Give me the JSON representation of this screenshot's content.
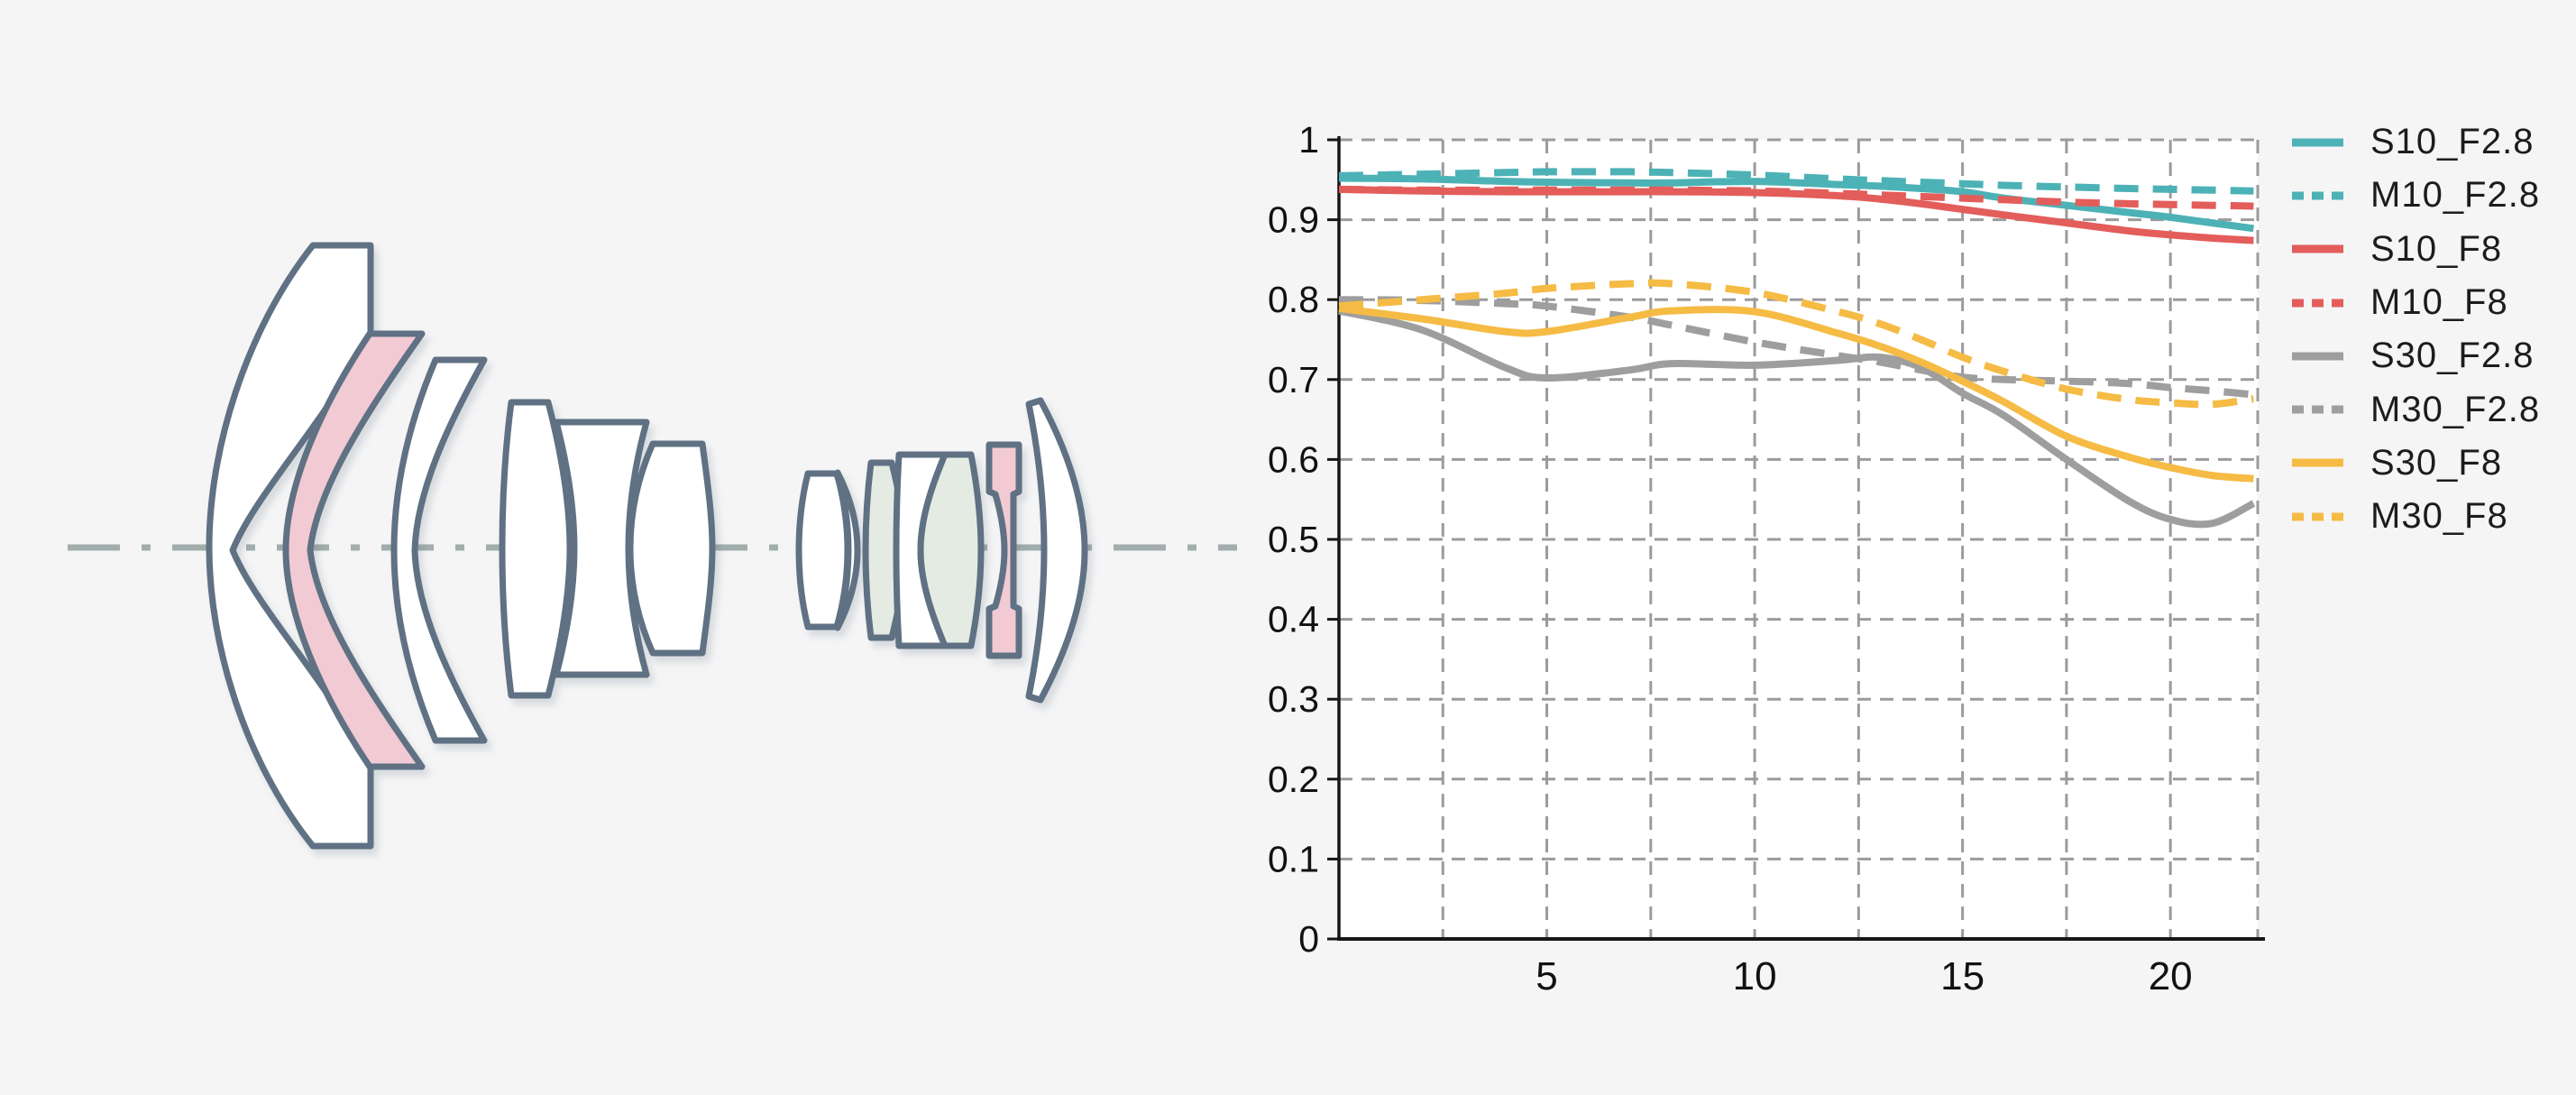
{
  "window": {
    "background": "#f5f5f6"
  },
  "lens_diagram": {
    "description": "optical lens cross-section with 12 glass elements on a dash-dot optical axis",
    "colors": {
      "outline": "#5f7183",
      "glass_white": "#ffffff",
      "glass_pink": "#f1cad4",
      "glass_green": "#e4ebe3",
      "optical_axis": "#a1aeac"
    },
    "optical_axis_style": "dash-dot",
    "elements": [
      {
        "id": "element-1",
        "tint": "white",
        "shape": "large negative meniscus, convex left"
      },
      {
        "id": "element-2",
        "tint": "pink",
        "shape": "negative meniscus, convex left"
      },
      {
        "id": "element-3",
        "tint": "white",
        "shape": "negative meniscus, convex left"
      },
      {
        "id": "element-4",
        "tint": "white",
        "shape": "biconvex"
      },
      {
        "id": "element-5",
        "tint": "white",
        "shape": "thick block, concave right"
      },
      {
        "id": "element-6",
        "tint": "white",
        "shape": "biconvex, cemented to element-5"
      },
      {
        "id": "element-7",
        "tint": "white",
        "shape": "small biconvex"
      },
      {
        "id": "element-7b",
        "tint": "white",
        "shape": "thin meniscus sliver cemented to element-7"
      },
      {
        "id": "element-8",
        "tint": "green",
        "shape": "small meniscus"
      },
      {
        "id": "element-9",
        "tint": "white",
        "shape": "doublet front, concave right"
      },
      {
        "id": "element-10",
        "tint": "green",
        "shape": "doublet rear, biconvex"
      },
      {
        "id": "element-11",
        "tint": "pink",
        "shape": "thin stepped element with mounting flange"
      },
      {
        "id": "element-12",
        "tint": "white",
        "shape": "rear crescent meniscus, convex right"
      }
    ]
  },
  "chart": {
    "plot_background": "#ffffff",
    "axis_color": "#161616",
    "grid_color": "#9b9b9b",
    "tick_label_color": "#111111",
    "legend_text_color": "#1c1c1c",
    "y_tick_labels": [
      "0",
      "0.1",
      "0.2",
      "0.3",
      "0.4",
      "0.5",
      "0.6",
      "0.7",
      "0.8",
      "0.9",
      "1"
    ],
    "x_tick_labels": [
      "5",
      "10",
      "15",
      "20"
    ]
  },
  "chart_data": {
    "type": "line",
    "title": "",
    "xlabel": "",
    "ylabel": "",
    "xlim": [
      0,
      22.1
    ],
    "ylim": [
      0,
      1
    ],
    "x_ticks": [
      5,
      10,
      15,
      20
    ],
    "y_ticks": [
      0,
      0.1,
      0.2,
      0.3,
      0.4,
      0.5,
      0.6,
      0.7,
      0.8,
      0.9,
      1
    ],
    "grid": {
      "x_interval": 2.5,
      "y_interval": 0.1,
      "style": "dashed",
      "right_edge_gridline": true
    },
    "legend_position": "right",
    "x": [
      0,
      2,
      4,
      5,
      7,
      8,
      10,
      12,
      13,
      14,
      15,
      16,
      17.5,
      19,
      20,
      21,
      22
    ],
    "series": [
      {
        "name": "S10_F2.8",
        "color": "#4db2b6",
        "style": "solid",
        "values": [
          0.952,
          0.951,
          0.948,
          0.947,
          0.946,
          0.946,
          0.948,
          0.944,
          0.942,
          0.939,
          0.935,
          0.927,
          0.918,
          0.909,
          0.903,
          0.896,
          0.889
        ]
      },
      {
        "name": "M10_F2.8",
        "color": "#4db2b6",
        "style": "dashed",
        "values": [
          0.955,
          0.957,
          0.959,
          0.96,
          0.96,
          0.959,
          0.956,
          0.951,
          0.949,
          0.947,
          0.945,
          0.943,
          0.941,
          0.939,
          0.938,
          0.937,
          0.936
        ]
      },
      {
        "name": "S10_F8",
        "color": "#e35d5b",
        "style": "solid",
        "values": [
          0.938,
          0.936,
          0.935,
          0.935,
          0.935,
          0.935,
          0.934,
          0.93,
          0.926,
          0.92,
          0.913,
          0.906,
          0.896,
          0.886,
          0.881,
          0.877,
          0.874
        ]
      },
      {
        "name": "M10_F8",
        "color": "#e35d5b",
        "style": "dashed",
        "values": [
          0.938,
          0.937,
          0.937,
          0.937,
          0.937,
          0.937,
          0.936,
          0.933,
          0.931,
          0.929,
          0.927,
          0.925,
          0.922,
          0.92,
          0.919,
          0.918,
          0.917
        ]
      },
      {
        "name": "S30_F2.8",
        "color": "#9e9e9e",
        "style": "solid",
        "values": [
          0.786,
          0.762,
          0.715,
          0.702,
          0.712,
          0.72,
          0.718,
          0.724,
          0.728,
          0.715,
          0.683,
          0.655,
          0.6,
          0.548,
          0.525,
          0.52,
          0.545
        ]
      },
      {
        "name": "M30_F2.8",
        "color": "#9e9e9e",
        "style": "dashed",
        "values": [
          0.8,
          0.799,
          0.795,
          0.792,
          0.778,
          0.768,
          0.747,
          0.73,
          0.722,
          0.712,
          0.703,
          0.7,
          0.698,
          0.695,
          0.69,
          0.686,
          0.681
        ]
      },
      {
        "name": "S30_F8",
        "color": "#f5bb44",
        "style": "solid",
        "values": [
          0.789,
          0.776,
          0.76,
          0.76,
          0.778,
          0.786,
          0.785,
          0.758,
          0.742,
          0.722,
          0.698,
          0.672,
          0.629,
          0.603,
          0.59,
          0.58,
          0.576
        ]
      },
      {
        "name": "M30_F8",
        "color": "#f5bb44",
        "style": "dashed",
        "values": [
          0.792,
          0.8,
          0.808,
          0.814,
          0.82,
          0.82,
          0.809,
          0.785,
          0.77,
          0.75,
          0.728,
          0.71,
          0.688,
          0.675,
          0.671,
          0.669,
          0.676
        ]
      }
    ]
  }
}
